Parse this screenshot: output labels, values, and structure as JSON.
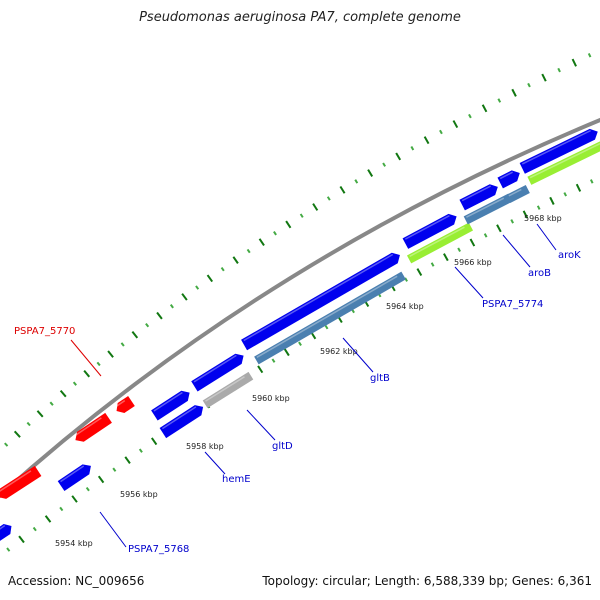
{
  "title": "Pseudomonas aeruginosa PA7, complete genome",
  "footer": {
    "accession": "Accession: NC_009656",
    "summary": "Topology: circular; Length: 6,588,339 bp; Genes: 6,361"
  },
  "colors": {
    "backbone": "#888888",
    "forward_gene": "#0000ee",
    "reverse_gene": "#ff0000",
    "segment_blue": "#4a7fb0",
    "segment_green": "#99ee33",
    "segment_gray": "#aaaaaa",
    "tick_dark": "#117711",
    "tick_light": "#44aa44",
    "label_forward": "#0000cc",
    "label_reverse": "#dd0000"
  },
  "map": {
    "scale_labels": [
      {
        "text": "5954 kbp",
        "kbp": 5954
      },
      {
        "text": "5956 kbp",
        "kbp": 5956
      },
      {
        "text": "5958 kbp",
        "kbp": 5958
      },
      {
        "text": "5960 kbp",
        "kbp": 5960
      },
      {
        "text": "5962 kbp",
        "kbp": 5962
      },
      {
        "text": "5964 kbp",
        "kbp": 5964
      },
      {
        "text": "5966 kbp",
        "kbp": 5966
      },
      {
        "text": "5968 kbp",
        "kbp": 5968
      }
    ],
    "gene_labels": [
      {
        "text": "PSPA7_5770",
        "strand": "reverse"
      },
      {
        "text": "PSPA7_5768",
        "strand": "forward"
      },
      {
        "text": "hemE",
        "strand": "forward"
      },
      {
        "text": "gltD",
        "strand": "forward"
      },
      {
        "text": "gltB",
        "strand": "forward"
      },
      {
        "text": "PSPA7_5774",
        "strand": "forward"
      },
      {
        "text": "aroB",
        "strand": "forward"
      },
      {
        "text": "aroK",
        "strand": "forward"
      }
    ]
  }
}
